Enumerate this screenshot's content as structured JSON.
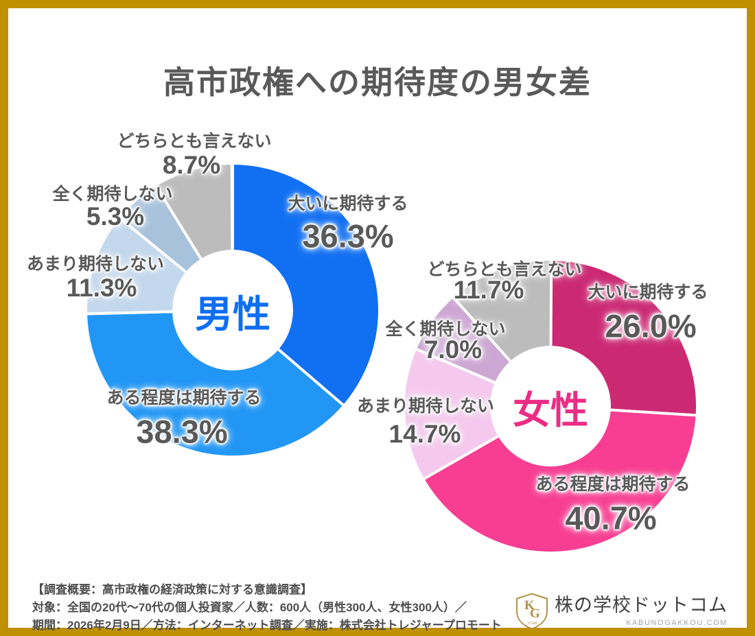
{
  "frame": {
    "border_color": "#BF9000",
    "background": "#FFFFFF"
  },
  "title": "高市政権への期待度の男女差",
  "chart_data": [
    {
      "type": "pie",
      "variant": "donut",
      "group_label": "男性",
      "group_label_color": "#0D6EF2",
      "unit": "%",
      "start_angle": "12-oclock",
      "direction": "clockwise",
      "segments": [
        {
          "label": "大いに期待する",
          "value": 36.3,
          "pct": "36.3%",
          "color": "#116FF2"
        },
        {
          "label": "ある程度は期待する",
          "value": 38.3,
          "pct": "38.3%",
          "color": "#2196F5"
        },
        {
          "label": "あまり期待しない",
          "value": 11.3,
          "pct": "11.3%",
          "color": "#C3D8EC"
        },
        {
          "label": "全く期待しない",
          "value": 5.3,
          "pct": "5.3%",
          "color": "#A8C2DB"
        },
        {
          "label": "どちらとも言えない",
          "value": 8.7,
          "pct": "8.7%",
          "color": "#BCBCBC"
        }
      ]
    },
    {
      "type": "pie",
      "variant": "donut",
      "group_label": "女性",
      "group_label_color": "#EB2D84",
      "unit": "%",
      "start_angle": "12-oclock",
      "direction": "clockwise",
      "segments": [
        {
          "label": "大いに期待する",
          "value": 26.0,
          "pct": "26.0%",
          "color": "#CB2A73"
        },
        {
          "label": "ある程度は期待する",
          "value": 40.7,
          "pct": "40.7%",
          "color": "#F73E92"
        },
        {
          "label": "あまり期待しない",
          "value": 14.7,
          "pct": "14.7%",
          "color": "#F4C9ED"
        },
        {
          "label": "全く期待しない",
          "value": 7.0,
          "pct": "7.0%",
          "color": "#CDA7D3"
        },
        {
          "label": "どちらとも言えない",
          "value": 11.7,
          "pct": "11.7%",
          "color": "#BCBCBC"
        }
      ]
    }
  ],
  "footer": {
    "survey_line1": "【調査概要：高市政権の経済政策に対する意識調査】",
    "survey_line2": "対象：全国の20代〜70代の個人投資家／人数：600人（男性300人、女性300人）／",
    "survey_line3": "期間：2026年2月9日／方法：インターネット調査／実施：株式会社トレジャープロモート",
    "logo": {
      "monogram_top": "K",
      "monogram_bottom": "G",
      "monogram_sub": ".COM",
      "name": "株の学校ドットコム",
      "domain": "KABUNOGAKKOU.COM",
      "gold": "#AE9148"
    }
  }
}
